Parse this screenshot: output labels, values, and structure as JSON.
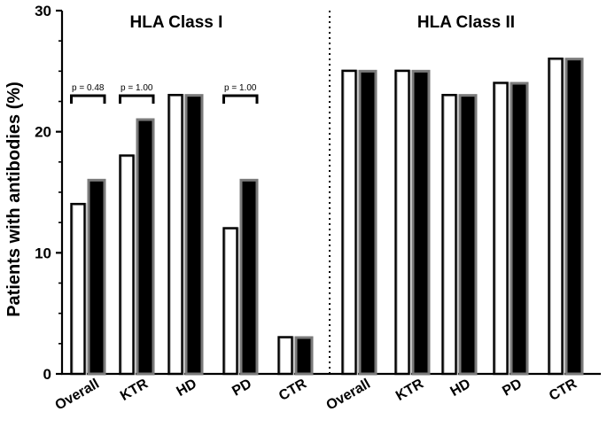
{
  "chart_data": {
    "type": "bar",
    "ylabel": "Patients with antibodies (%)",
    "ylim": [
      0,
      30
    ],
    "yticks": [
      0,
      10,
      20,
      30
    ],
    "panels": [
      {
        "title": "HLA Class I",
        "categories": [
          "Overall",
          "KTR",
          "HD",
          "PD",
          "CTR"
        ],
        "series": [
          {
            "values": [
              14,
              18,
              23,
              12,
              3
            ]
          },
          {
            "values": [
              16,
              21,
              23,
              16,
              3
            ]
          }
        ],
        "annotations": [
          {
            "category": "Overall",
            "label": "p = 0.48"
          },
          {
            "category": "KTR",
            "label": "p = 1.00"
          },
          {
            "category": "PD",
            "label": "p = 1.00"
          }
        ]
      },
      {
        "title": "HLA Class II",
        "categories": [
          "Overall",
          "KTR",
          "HD",
          "PD",
          "CTR"
        ],
        "series": [
          {
            "values": [
              25,
              25,
              23,
              24,
              26
            ]
          },
          {
            "values": [
              25,
              25,
              23,
              24,
              26
            ]
          }
        ],
        "annotations": []
      }
    ],
    "colors": {
      "open_outline": "#000000",
      "open_fill": "#ffffff",
      "filled": "#000000",
      "edge_gray": "#7a7a7a",
      "light_gray": "#c8c8c8"
    },
    "grid": false,
    "legend": "none"
  }
}
